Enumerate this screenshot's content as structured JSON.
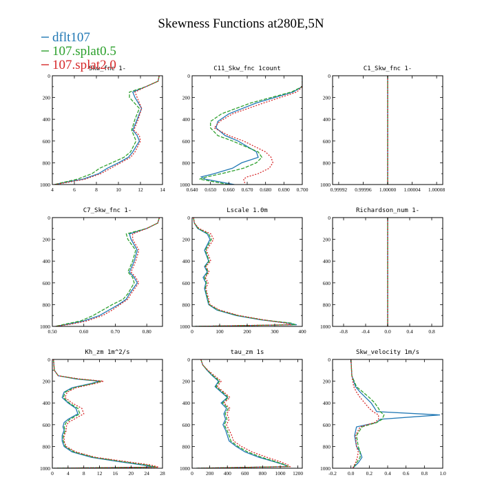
{
  "figure": {
    "title": "Skewness Functions at280E,5N"
  },
  "legend": [
    {
      "label": "dflt107",
      "color": "#1f77b4",
      "dash": ""
    },
    {
      "label": "107.splat0.5",
      "color": "#2ca02c",
      "dash": "5,2"
    },
    {
      "label": "107.splat2.0",
      "color": "#d62728",
      "dash": "2,2"
    }
  ],
  "chart_data": [
    {
      "type": "line",
      "title": "Skw_fnc  1-",
      "xlim": [
        4,
        14
      ],
      "ylim": [
        0,
        1000
      ],
      "y_inverted": true,
      "xticks": [
        4,
        6,
        8,
        10,
        12,
        14
      ],
      "xtick_labels": [
        "4",
        "6",
        "8",
        "10",
        "12",
        "14"
      ],
      "y": [
        0,
        50,
        100,
        150,
        200,
        300,
        400,
        500,
        550,
        600,
        700,
        750,
        800,
        850,
        900,
        950,
        980,
        1000
      ],
      "series": [
        {
          "name": "dflt107",
          "values": [
            13.7,
            13.6,
            12.5,
            11.3,
            11.5,
            12.1,
            11.7,
            11.3,
            11.7,
            11.9,
            11.3,
            10.9,
            10.0,
            9.0,
            8.2,
            6.8,
            5.2,
            4.2
          ]
        },
        {
          "name": "107.splat0.5",
          "values": [
            13.7,
            13.6,
            12.5,
            11.0,
            11.0,
            11.9,
            11.5,
            11.2,
            11.4,
            11.6,
            11.1,
            10.5,
            9.4,
            8.3,
            7.6,
            6.3,
            5.0,
            4.2
          ]
        },
        {
          "name": "107.splat2.0",
          "values": [
            13.7,
            13.6,
            12.5,
            11.5,
            11.7,
            12.1,
            11.8,
            11.4,
            11.9,
            12.0,
            11.5,
            11.1,
            10.2,
            9.3,
            8.4,
            7.0,
            5.4,
            4.2
          ]
        }
      ]
    },
    {
      "type": "line",
      "title": "C11_Skw_fnc  1count",
      "xlim": [
        0.64,
        0.7
      ],
      "ylim": [
        0,
        1000
      ],
      "y_inverted": true,
      "xticks": [
        0.64,
        0.65,
        0.66,
        0.67,
        0.68,
        0.69,
        0.7
      ],
      "xtick_labels": [
        "0.640",
        "0.650",
        "0.660",
        "0.670",
        "0.680",
        "0.690",
        "0.700"
      ],
      "y": [
        0,
        100,
        150,
        250,
        350,
        420,
        480,
        550,
        600,
        700,
        750,
        800,
        850,
        900,
        930,
        950,
        1000
      ],
      "series": [
        {
          "name": "dflt107",
          "values": [
            0.7,
            0.7,
            0.695,
            0.675,
            0.66,
            0.654,
            0.653,
            0.658,
            0.665,
            0.675,
            0.676,
            0.667,
            0.662,
            0.652,
            0.645,
            0.647,
            0.663
          ]
        },
        {
          "name": "107.splat0.5",
          "values": [
            0.7,
            0.7,
            0.694,
            0.672,
            0.656,
            0.65,
            0.65,
            0.654,
            0.662,
            0.676,
            0.678,
            0.675,
            0.668,
            0.656,
            0.648,
            0.644,
            0.66
          ]
        },
        {
          "name": "107.splat2.0",
          "values": [
            0.7,
            0.7,
            0.697,
            0.679,
            0.662,
            0.655,
            0.652,
            0.66,
            0.668,
            0.68,
            0.683,
            0.684,
            0.682,
            0.676,
            0.67,
            0.668,
            0.669
          ]
        }
      ]
    },
    {
      "type": "line",
      "title": "C1_Skw_fnc  1-",
      "xlim": [
        0.99991,
        1.00009
      ],
      "ylim": [
        0,
        1000
      ],
      "y_inverted": true,
      "xticks": [
        0.99992,
        0.99996,
        1.0,
        1.00004,
        1.00008
      ],
      "xtick_labels": [
        "0.99992",
        "0.99996",
        "1.00000",
        "1.00004",
        "1.00008"
      ],
      "y": [
        0,
        1000
      ],
      "series": [
        {
          "name": "dflt107",
          "values": [
            1.0,
            1.0
          ]
        },
        {
          "name": "107.splat0.5",
          "values": [
            1.0,
            1.0
          ]
        },
        {
          "name": "107.splat2.0",
          "values": [
            1.0,
            1.0
          ]
        }
      ]
    },
    {
      "type": "line",
      "title": "C7_Skw_fnc  1-",
      "xlim": [
        0.5,
        0.85
      ],
      "ylim": [
        0,
        1000
      ],
      "y_inverted": true,
      "xticks": [
        0.5,
        0.6,
        0.7,
        0.8
      ],
      "xtick_labels": [
        "0.50",
        "0.60",
        "0.70",
        "0.80"
      ],
      "y": [
        0,
        50,
        100,
        150,
        200,
        300,
        400,
        500,
        550,
        600,
        700,
        750,
        800,
        850,
        900,
        950,
        980,
        1000
      ],
      "series": [
        {
          "name": "dflt107",
          "values": [
            0.84,
            0.835,
            0.8,
            0.745,
            0.75,
            0.77,
            0.76,
            0.745,
            0.76,
            0.77,
            0.745,
            0.735,
            0.71,
            0.68,
            0.65,
            0.6,
            0.55,
            0.51
          ]
        },
        {
          "name": "107.splat0.5",
          "values": [
            0.84,
            0.835,
            0.8,
            0.735,
            0.74,
            0.765,
            0.755,
            0.74,
            0.755,
            0.76,
            0.74,
            0.725,
            0.69,
            0.66,
            0.63,
            0.59,
            0.54,
            0.51
          ]
        },
        {
          "name": "107.splat2.0",
          "values": [
            0.84,
            0.835,
            0.8,
            0.755,
            0.755,
            0.775,
            0.765,
            0.75,
            0.765,
            0.775,
            0.75,
            0.74,
            0.715,
            0.69,
            0.66,
            0.61,
            0.56,
            0.51
          ]
        }
      ]
    },
    {
      "type": "line",
      "title": "Lscale  1.0m",
      "xlim": [
        0,
        400
      ],
      "ylim": [
        0,
        1000
      ],
      "y_inverted": true,
      "xticks": [
        0,
        100,
        200,
        300,
        400
      ],
      "xtick_labels": [
        "0",
        "100",
        "200",
        "300",
        "400"
      ],
      "y": [
        0,
        50,
        100,
        150,
        200,
        300,
        400,
        450,
        500,
        550,
        600,
        650,
        700,
        800,
        850,
        900,
        940,
        970,
        985,
        1000
      ],
      "series": [
        {
          "name": "dflt107",
          "values": [
            5,
            8,
            20,
            55,
            65,
            45,
            60,
            45,
            55,
            40,
            50,
            45,
            50,
            60,
            90,
            160,
            250,
            350,
            380,
            10
          ]
        },
        {
          "name": "107.splat0.5",
          "values": [
            5,
            8,
            22,
            60,
            70,
            48,
            62,
            48,
            58,
            45,
            52,
            48,
            52,
            62,
            95,
            165,
            255,
            360,
            375,
            10
          ]
        },
        {
          "name": "107.splat2.0",
          "values": [
            5,
            8,
            25,
            68,
            78,
            52,
            68,
            50,
            62,
            48,
            58,
            50,
            55,
            65,
            100,
            170,
            260,
            340,
            360,
            10
          ]
        }
      ]
    },
    {
      "type": "line",
      "title": "Richardson_num  1-",
      "xlim": [
        -1,
        1
      ],
      "ylim": [
        0,
        1000
      ],
      "y_inverted": true,
      "xticks": [
        -0.8,
        -0.4,
        0.0,
        0.4,
        0.8
      ],
      "xtick_labels": [
        "-0.8",
        "-0.4",
        "0.0",
        "0.4",
        "0.8"
      ],
      "y": [
        0,
        1000
      ],
      "series": [
        {
          "name": "dflt107",
          "values": [
            0,
            0
          ]
        },
        {
          "name": "107.splat0.5",
          "values": [
            0,
            0
          ]
        },
        {
          "name": "107.splat2.0",
          "values": [
            0,
            0
          ]
        }
      ]
    },
    {
      "type": "line",
      "title": "Kh_zm  1m^2/s",
      "xlim": [
        0,
        28
      ],
      "ylim": [
        0,
        1000
      ],
      "y_inverted": true,
      "xticks": [
        0,
        4,
        8,
        12,
        16,
        20,
        24,
        28
      ],
      "xtick_labels": [
        "0",
        "4",
        "8",
        "12",
        "16",
        "20",
        "24",
        "28"
      ],
      "y": [
        0,
        100,
        150,
        180,
        200,
        220,
        260,
        300,
        350,
        400,
        450,
        500,
        550,
        580,
        620,
        650,
        700,
        750,
        800,
        850,
        900,
        940,
        970,
        990,
        1000
      ],
      "series": [
        {
          "name": "dflt107",
          "values": [
            0.3,
            0.5,
            1.5,
            6,
            12,
            10,
            5,
            3,
            2.5,
            4,
            6,
            6.5,
            4,
            3,
            2.7,
            3,
            2.5,
            2.5,
            3,
            5,
            10,
            17,
            23,
            26,
            0.3
          ]
        },
        {
          "name": "107.splat0.5",
          "values": [
            0.3,
            0.5,
            1.5,
            6.5,
            12.5,
            10.5,
            5.5,
            3.3,
            2.8,
            4.3,
            6.5,
            7,
            4.5,
            3.5,
            3,
            3.3,
            2.8,
            2.8,
            3.3,
            5.5,
            10.5,
            18,
            24,
            26.5,
            0.3
          ]
        },
        {
          "name": "107.splat2.0",
          "values": [
            0.3,
            0.5,
            1.5,
            7,
            13,
            11,
            6,
            3.8,
            3.2,
            5,
            7.5,
            8,
            5.5,
            4,
            3.5,
            3.6,
            3,
            3,
            3.5,
            6,
            11,
            19,
            25,
            27,
            0.3
          ]
        }
      ]
    },
    {
      "type": "line",
      "title": "tau_zm  1s",
      "xlim": [
        0,
        1250
      ],
      "ylim": [
        0,
        1000
      ],
      "y_inverted": true,
      "xticks": [
        0,
        200,
        400,
        600,
        800,
        1000,
        1200
      ],
      "xtick_labels": [
        "0",
        "200",
        "400",
        "600",
        "800",
        "1000",
        "1200"
      ],
      "y": [
        0,
        50,
        100,
        150,
        200,
        250,
        300,
        350,
        400,
        450,
        500,
        550,
        600,
        650,
        700,
        750,
        800,
        850,
        900,
        940,
        970,
        985,
        1000
      ],
      "series": [
        {
          "name": "dflt107",
          "values": [
            100,
            120,
            170,
            230,
            300,
            260,
            330,
            400,
            330,
            390,
            360,
            380,
            350,
            380,
            400,
            420,
            500,
            600,
            760,
            930,
            1050,
            1080,
            50
          ]
        },
        {
          "name": "107.splat0.5",
          "values": [
            100,
            120,
            175,
            240,
            310,
            270,
            345,
            410,
            345,
            410,
            375,
            395,
            365,
            395,
            420,
            440,
            520,
            630,
            790,
            950,
            1060,
            1090,
            50
          ]
        },
        {
          "name": "107.splat2.0",
          "values": [
            100,
            120,
            180,
            255,
            330,
            285,
            360,
            430,
            360,
            430,
            395,
            420,
            390,
            420,
            450,
            470,
            560,
            680,
            850,
            1000,
            1090,
            1110,
            50
          ]
        }
      ]
    },
    {
      "type": "line",
      "title": "Skw_velocity  1m/s",
      "xlim": [
        -0.2,
        1.0
      ],
      "ylim": [
        0,
        1000
      ],
      "y_inverted": true,
      "xticks": [
        -0.2,
        0.0,
        0.2,
        0.4,
        0.6,
        0.8,
        1.0
      ],
      "xtick_labels": [
        "-0.2",
        "0.0",
        "0.2",
        "0.4",
        "0.6",
        "0.8",
        "1.0"
      ],
      "y": [
        0,
        150,
        250,
        300,
        350,
        400,
        450,
        480,
        510,
        550,
        580,
        620,
        700,
        800,
        850,
        900,
        950,
        1000
      ],
      "series": [
        {
          "name": "dflt107",
          "values": [
            0.0,
            0.01,
            0.05,
            0.1,
            0.16,
            0.22,
            0.26,
            0.28,
            0.97,
            0.32,
            0.28,
            0.06,
            0.04,
            0.06,
            0.1,
            0.12,
            0.08,
            0.02
          ]
        },
        {
          "name": "107.splat0.5",
          "values": [
            0.0,
            0.01,
            0.06,
            0.13,
            0.2,
            0.26,
            0.3,
            0.32,
            0.36,
            0.34,
            0.28,
            0.12,
            0.06,
            0.08,
            0.1,
            0.1,
            0.06,
            0.02
          ]
        },
        {
          "name": "107.splat2.0",
          "values": [
            0.0,
            0.01,
            0.03,
            0.06,
            0.1,
            0.15,
            0.2,
            0.24,
            0.3,
            0.3,
            0.26,
            0.1,
            0.05,
            0.06,
            0.08,
            0.07,
            0.05,
            0.02
          ]
        }
      ]
    }
  ]
}
